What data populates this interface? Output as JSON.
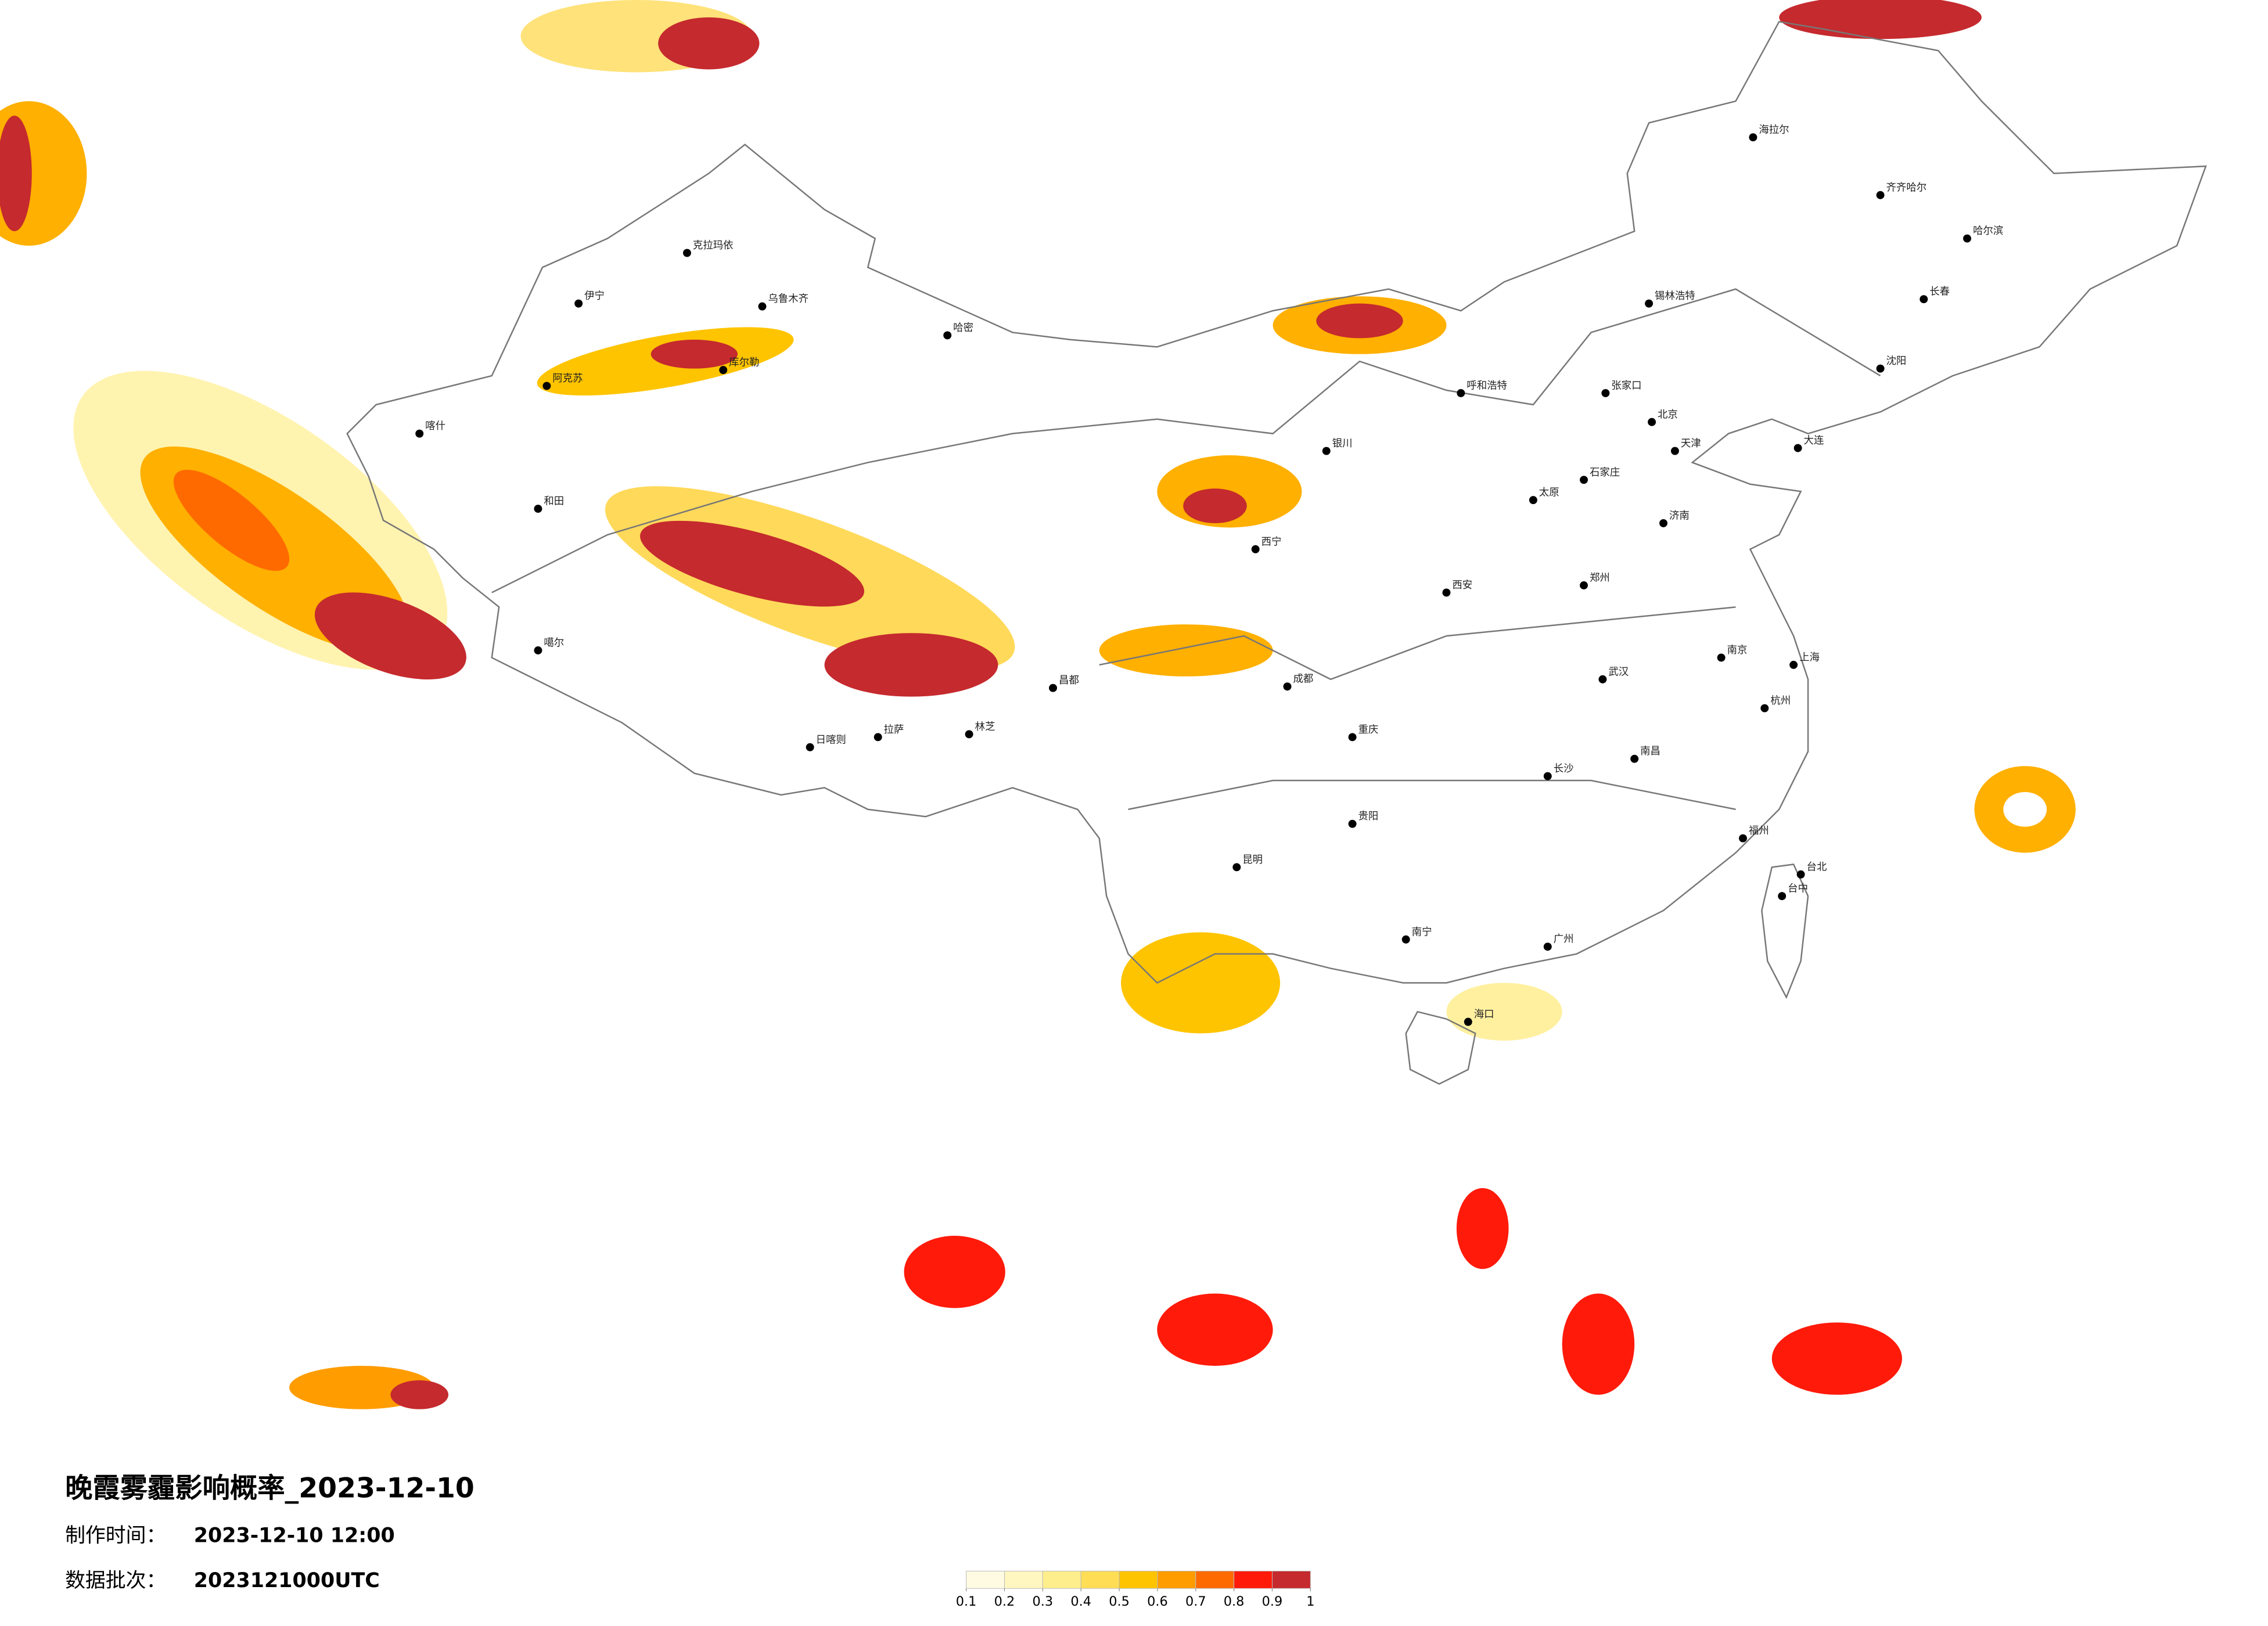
{
  "header": {
    "title": "晚霞雾霾影响概率_2023-12-10",
    "made_label": "制作时间：",
    "made_time": "2023-12-10 12:00",
    "batch_label": "数据批次：",
    "batch": "2023121000UTC"
  },
  "legend": {
    "ticks": [
      0.1,
      0.2,
      0.3,
      0.4,
      0.5,
      0.6,
      0.7,
      0.8,
      0.9,
      1
    ],
    "colors": [
      "#fffbe3",
      "#fff6c0",
      "#ffee8c",
      "#ffde55",
      "#ffc400",
      "#ff9c00",
      "#ff6a00",
      "#ff1a0a",
      "#c52a2e"
    ]
  },
  "cities": [
    "克拉玛依",
    "乌鲁木齐",
    "伊宁",
    "喀什",
    "和田",
    "哈密",
    "库尔勒",
    "阿克苏",
    "噶尔",
    "日喀则",
    "拉萨",
    "林芝",
    "昌都",
    "西宁",
    "银川",
    "呼和浩特",
    "张家口",
    "锡林浩特",
    "北京",
    "天津",
    "石家庄",
    "太原",
    "济南",
    "郑州",
    "西安",
    "武汉",
    "长沙",
    "南昌",
    "南京",
    "上海",
    "杭州",
    "福州",
    "广州",
    "南宁",
    "海口",
    "成都",
    "重庆",
    "贵阳",
    "昆明",
    "沈阳",
    "长春",
    "哈尔滨",
    "齐齐哈尔",
    "海拉尔",
    "大连",
    "台北",
    "台中"
  ]
}
